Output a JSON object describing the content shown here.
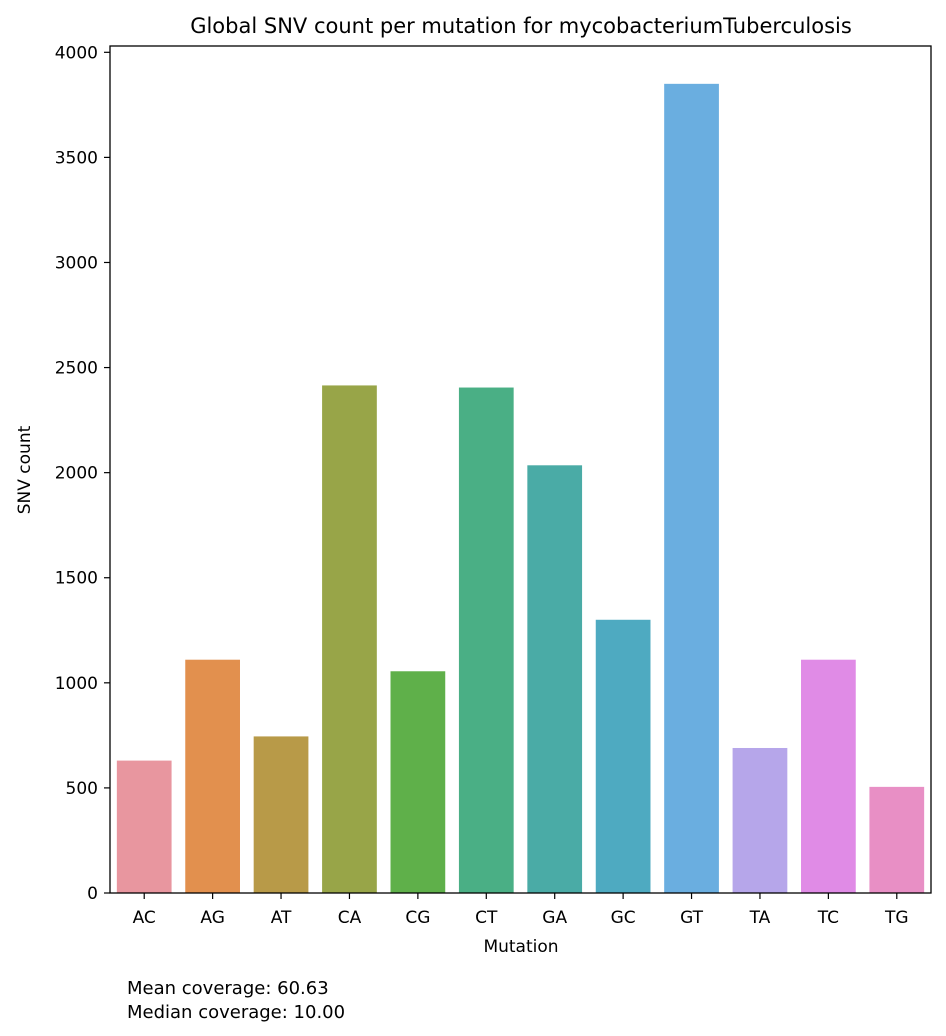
{
  "chart_data": {
    "type": "bar",
    "title": "Global SNV count per mutation for mycobacteriumTuberculosis",
    "xlabel": "Mutation",
    "ylabel": "SNV count",
    "categories": [
      "AC",
      "AG",
      "AT",
      "CA",
      "CG",
      "CT",
      "GA",
      "GC",
      "GT",
      "TA",
      "TC",
      "TG"
    ],
    "values": [
      630,
      1110,
      745,
      2415,
      1055,
      2405,
      2035,
      1300,
      3850,
      690,
      1110,
      505
    ],
    "colors": [
      "#e8969f",
      "#e2904e",
      "#b89a48",
      "#98a548",
      "#5fb04a",
      "#4aaf85",
      "#4aaba6",
      "#4eaac1",
      "#6aaee0",
      "#b6a6ea",
      "#e08be6",
      "#e88fc5"
    ],
    "ylim": [
      0,
      4030
    ],
    "yticks": [
      0,
      500,
      1000,
      1500,
      2000,
      2500,
      3000,
      3500,
      4000
    ],
    "grid": false,
    "legend": "none"
  },
  "annotations": {
    "mean_coverage": "Mean coverage: 60.63",
    "median_coverage": "Median coverage: 10.00"
  }
}
